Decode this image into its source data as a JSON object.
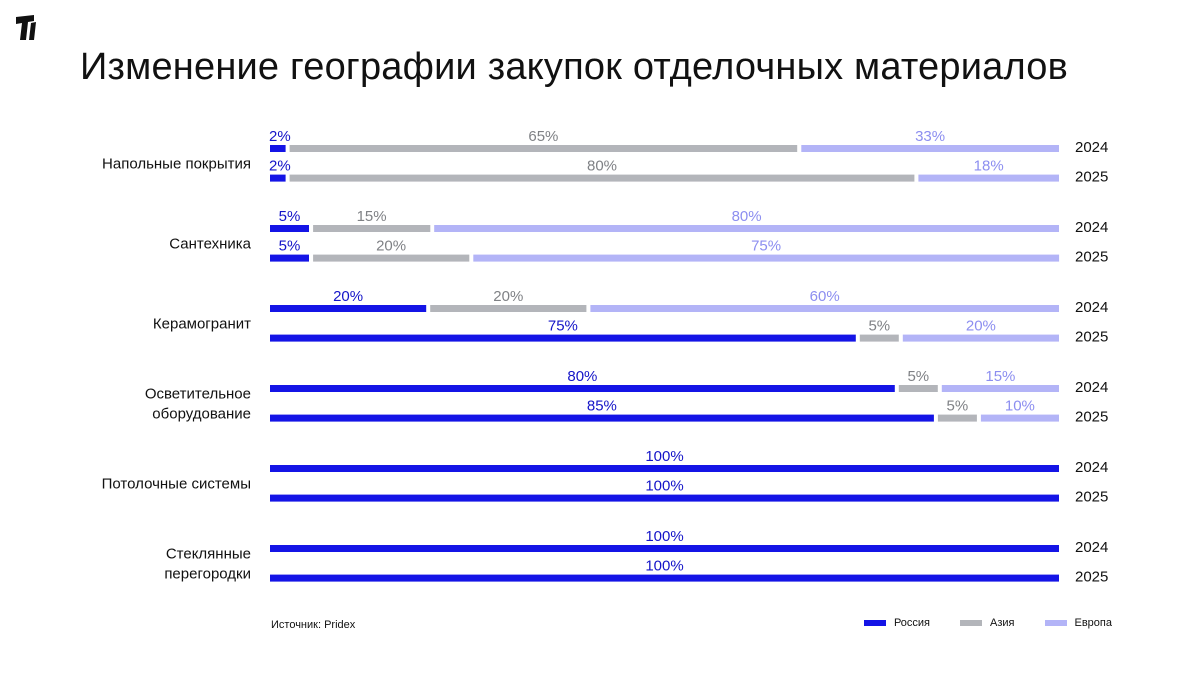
{
  "title": "Изменение географии закупок отделочных материалов",
  "source": "Источник: Pridex",
  "colors": {
    "Россия": "#1414e6",
    "Азия": "#b3b5ba",
    "Европа": "#b3b4f7",
    "Европа_text": "#8c8ef0",
    "Россия_text": "#1414c8",
    "Азия_text": "#7f8185"
  },
  "legend": [
    {
      "name": "Россия"
    },
    {
      "name": "Азия"
    },
    {
      "name": "Европа"
    }
  ],
  "chart_data": {
    "type": "bar",
    "stacked": true,
    "orientation": "horizontal",
    "unit": "%",
    "xlim": [
      0,
      100
    ],
    "categories": [
      "Напольные покрытия",
      "Сантехника",
      "Керамогранит",
      "Осветительное оборудование",
      "Потолочные системы",
      "Стеклянные перегородки"
    ],
    "years": [
      "2024",
      "2025"
    ],
    "series": [
      {
        "name": "Россия",
        "values": {
          "2024": [
            2,
            5,
            20,
            80,
            100,
            100
          ],
          "2025": [
            2,
            5,
            75,
            85,
            100,
            100
          ]
        }
      },
      {
        "name": "Азия",
        "values": {
          "2024": [
            65,
            15,
            20,
            5,
            0,
            0
          ],
          "2025": [
            80,
            20,
            5,
            5,
            0,
            0
          ]
        }
      },
      {
        "name": "Европа",
        "values": {
          "2024": [
            33,
            80,
            60,
            15,
            0,
            0
          ],
          "2025": [
            18,
            75,
            20,
            10,
            0,
            0
          ]
        }
      }
    ]
  }
}
